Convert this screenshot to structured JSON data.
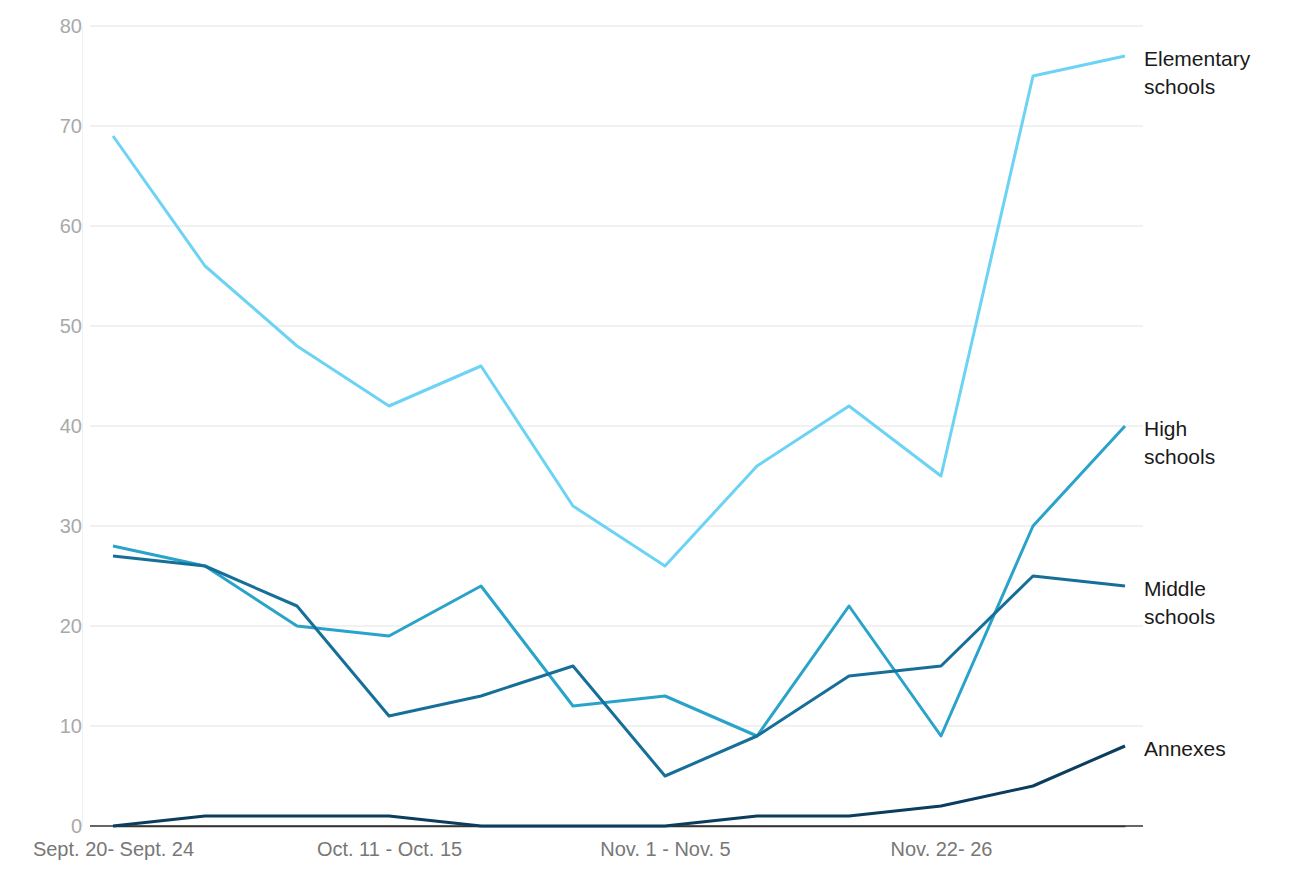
{
  "chart_data": {
    "type": "line",
    "categories": [
      "Sept. 20- Sept. 24",
      null,
      null,
      "Oct. 11 - Oct. 15",
      null,
      null,
      "Nov. 1 - Nov. 5",
      null,
      null,
      "Nov. 22- 26",
      null,
      null
    ],
    "series": [
      {
        "name": "Elementary schools",
        "color": "#6dd3f5",
        "values": [
          69,
          56,
          48,
          42,
          46,
          32,
          26,
          36,
          42,
          35,
          75,
          77
        ]
      },
      {
        "name": "High schools",
        "color": "#29a3c9",
        "values": [
          28,
          26,
          20,
          19,
          24,
          12,
          13,
          9,
          22,
          9,
          30,
          40
        ]
      },
      {
        "name": "Middle schools",
        "color": "#166f99",
        "values": [
          27,
          26,
          22,
          11,
          13,
          16,
          5,
          9,
          15,
          16,
          25,
          24
        ]
      },
      {
        "name": "Annexes",
        "color": "#0a3d5e",
        "values": [
          0,
          1,
          1,
          1,
          0,
          0,
          0,
          1,
          1,
          2,
          4,
          8
        ]
      }
    ],
    "ylim": [
      0,
      80
    ],
    "yticks": [
      0,
      10,
      20,
      30,
      40,
      50,
      60,
      70,
      80
    ],
    "grid": true
  }
}
